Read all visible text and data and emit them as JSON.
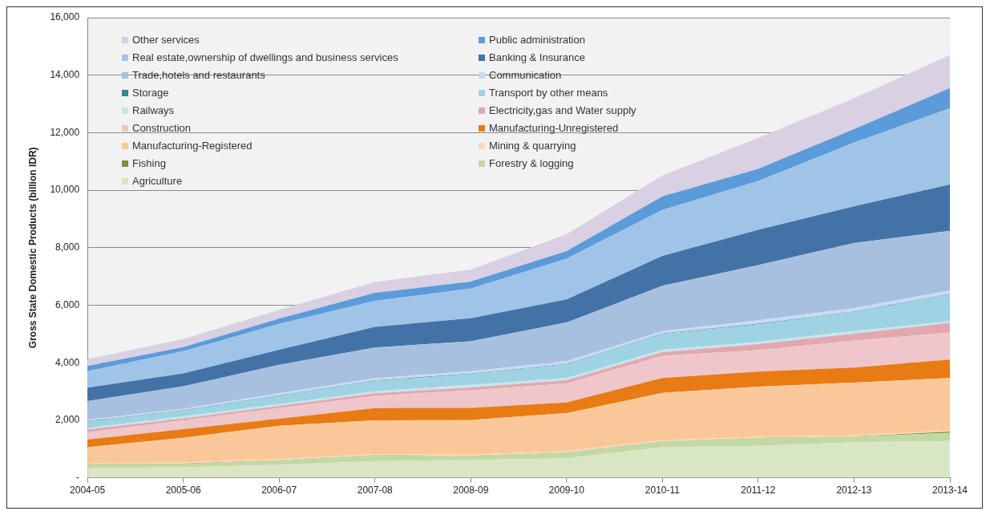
{
  "chart_data": {
    "type": "area",
    "stacked": true,
    "ylabel": "Gross State Domestic Products (billion IDR)",
    "categories": [
      "2004-05",
      "2005-06",
      "2006-07",
      "2007-08",
      "2008-09",
      "2009-10",
      "2010-11",
      "2011-12",
      "2012-13",
      "2013-14"
    ],
    "ylim": [
      0,
      16000
    ],
    "yticks": [
      {
        "value": 0,
        "label": "-"
      },
      {
        "value": 2000,
        "label": "2,000"
      },
      {
        "value": 4000,
        "label": "4,000"
      },
      {
        "value": 6000,
        "label": "6,000"
      },
      {
        "value": 8000,
        "label": "8,000"
      },
      {
        "value": 10000,
        "label": "10,000"
      },
      {
        "value": 12000,
        "label": "12,000"
      },
      {
        "value": 14000,
        "label": "14,000"
      },
      {
        "value": 16000,
        "label": "16,000"
      }
    ],
    "grid": "y",
    "legend": "top left",
    "series": [
      {
        "name": "Agriculture",
        "color": "#d9e6c4",
        "values": [
          330,
          370,
          450,
          585,
          615,
          680,
          1065,
          1110,
          1235,
          1280
        ]
      },
      {
        "name": "Forestry & logging",
        "color": "#c3d9a5",
        "values": [
          130,
          110,
          150,
          190,
          140,
          200,
          190,
          265,
          190,
          285
        ]
      },
      {
        "name": "Fishing",
        "color": "#77933c",
        "values": [
          10,
          10,
          10,
          10,
          10,
          10,
          10,
          10,
          10,
          40
        ]
      },
      {
        "name": "Mining & quarrying",
        "color": "#fcd9bd",
        "values": [
          40,
          40,
          40,
          40,
          40,
          40,
          40,
          40,
          40,
          40
        ]
      },
      {
        "name": "Manufacturing-Registered",
        "color": "#fac898",
        "values": [
          550,
          860,
          1160,
          1175,
          1205,
          1315,
          1645,
          1745,
          1835,
          1825
        ]
      },
      {
        "name": "Manufacturing-Unregistered",
        "color": "#e87b14",
        "values": [
          265,
          300,
          240,
          425,
          420,
          375,
          520,
          520,
          520,
          640
        ]
      },
      {
        "name": "Construction",
        "color": "#efc6ca",
        "values": [
          255,
          310,
          370,
          425,
          615,
          660,
          775,
          750,
          940,
          945
        ]
      },
      {
        "name": "Electricity,gas and Water supply",
        "color": "#e3a7b0",
        "values": [
          95,
          65,
          80,
          90,
          95,
          115,
          120,
          210,
          240,
          330
        ]
      },
      {
        "name": "Railways",
        "color": "#c7e4ec",
        "values": [
          55,
          75,
          65,
          70,
          95,
          75,
          85,
          75,
          90,
          65
        ]
      },
      {
        "name": "Transport by other means",
        "color": "#9fd3e3",
        "values": [
          225,
          190,
          285,
          360,
          375,
          470,
          550,
          615,
          660,
          925
        ]
      },
      {
        "name": "Storage",
        "color": "#31859c",
        "values": [
          15,
          15,
          15,
          15,
          15,
          15,
          15,
          15,
          15,
          15
        ]
      },
      {
        "name": "Communication",
        "color": "#c9dbf0",
        "values": [
          45,
          50,
          75,
          75,
          80,
          100,
          85,
          125,
          125,
          125
        ]
      },
      {
        "name": "Trade,hotels and restaurants",
        "color": "#a8c0e0",
        "values": [
          650,
          785,
          990,
          1070,
          1040,
          1345,
          1575,
          1915,
          2265,
          2075
        ]
      },
      {
        "name": "Banking & Insurance",
        "color": "#4373a6",
        "values": [
          470,
          450,
          520,
          720,
          800,
          805,
          1040,
          1230,
          1275,
          1605
        ]
      },
      {
        "name": "Real estate,ownership of dwellings and business services",
        "color": "#a0c4e8",
        "values": [
          570,
          770,
          900,
          900,
          1035,
          1415,
          1600,
          1695,
          2215,
          2655
        ]
      },
      {
        "name": "Public administration",
        "color": "#5b9bd9",
        "values": [
          185,
          145,
          185,
          280,
          240,
          260,
          470,
          425,
          470,
          700
        ]
      },
      {
        "name": "Other services",
        "color": "#d9d0e4",
        "values": [
          235,
          285,
          305,
          380,
          420,
          590,
          730,
          1070,
          1075,
          1150
        ]
      }
    ]
  }
}
